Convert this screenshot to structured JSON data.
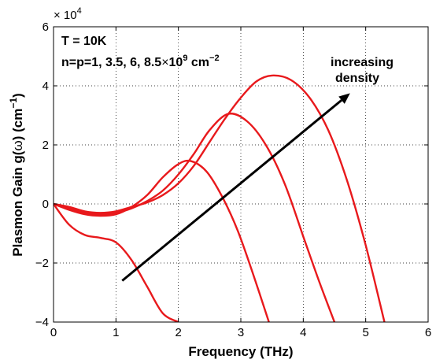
{
  "chart_data": {
    "type": "line",
    "xlabel": "Frequency (THz)",
    "ylabel_main": "Plasmon Gain g(",
    "ylabel_omega": "ω",
    "ylabel_units": ") (cm",
    "ylabel_exp": "−1",
    "ylabel_close": ")",
    "xlim": [
      0,
      6
    ],
    "ylim": [
      -4,
      6
    ],
    "y_multiplier_base": "× 10",
    "y_multiplier_exp": "4",
    "xticks": [
      0,
      1,
      2,
      3,
      4,
      5,
      6
    ],
    "yticks": [
      -4,
      -2,
      0,
      2,
      4,
      6
    ],
    "ytick_labels": [
      "−4",
      "−2",
      "0",
      "2",
      "4",
      "6"
    ],
    "grid": true,
    "series_color": "#e8191c",
    "series": [
      {
        "x": [
          0,
          0.25,
          0.5,
          0.75,
          1.0,
          1.25,
          1.5,
          1.75,
          2.0
        ],
        "y": [
          0,
          -0.7,
          -1.05,
          -1.15,
          -1.3,
          -1.9,
          -2.8,
          -3.7,
          -4.0
        ]
      },
      {
        "x": [
          0,
          0.25,
          0.5,
          0.75,
          1.0,
          1.25,
          1.5,
          1.75,
          2.0,
          2.2,
          2.45,
          2.7,
          2.95,
          3.2,
          3.45
        ],
        "y": [
          0,
          -0.2,
          -0.35,
          -0.4,
          -0.35,
          -0.1,
          0.3,
          0.9,
          1.35,
          1.45,
          1.1,
          0.25,
          -0.9,
          -2.4,
          -4.0
        ]
      },
      {
        "x": [
          0,
          0.25,
          0.5,
          0.75,
          1.0,
          1.25,
          1.5,
          1.75,
          2.0,
          2.25,
          2.5,
          2.8,
          3.1,
          3.4,
          3.7,
          4.0,
          4.25,
          4.5
        ],
        "y": [
          0,
          -0.15,
          -0.3,
          -0.35,
          -0.3,
          -0.15,
          0.1,
          0.45,
          1.0,
          1.7,
          2.5,
          3.05,
          2.8,
          2.0,
          0.7,
          -1.1,
          -2.6,
          -4.0
        ]
      },
      {
        "x": [
          0,
          0.25,
          0.5,
          0.75,
          1.0,
          1.25,
          1.5,
          1.75,
          2.0,
          2.25,
          2.5,
          2.75,
          3.0,
          3.25,
          3.5,
          3.8,
          4.1,
          4.4,
          4.7,
          5.0,
          5.3
        ],
        "y": [
          0,
          -0.1,
          -0.25,
          -0.3,
          -0.25,
          -0.1,
          0.05,
          0.3,
          0.7,
          1.3,
          2.1,
          2.9,
          3.6,
          4.15,
          4.35,
          4.2,
          3.6,
          2.5,
          0.8,
          -1.4,
          -4.0
        ]
      }
    ],
    "annotations": {
      "temp": "T = 10K",
      "density_prefix": "n=p=1, 3.5, 6, 8.5",
      "density_times": "×",
      "density_base": "10",
      "density_base_exp": "9",
      "density_units": " cm",
      "density_units_exp": "−2",
      "arrow_text_1": "increasing",
      "arrow_text_2": "density",
      "arrow_start": [
        1.1,
        -2.6
      ],
      "arrow_end": [
        4.75,
        3.75
      ]
    }
  }
}
